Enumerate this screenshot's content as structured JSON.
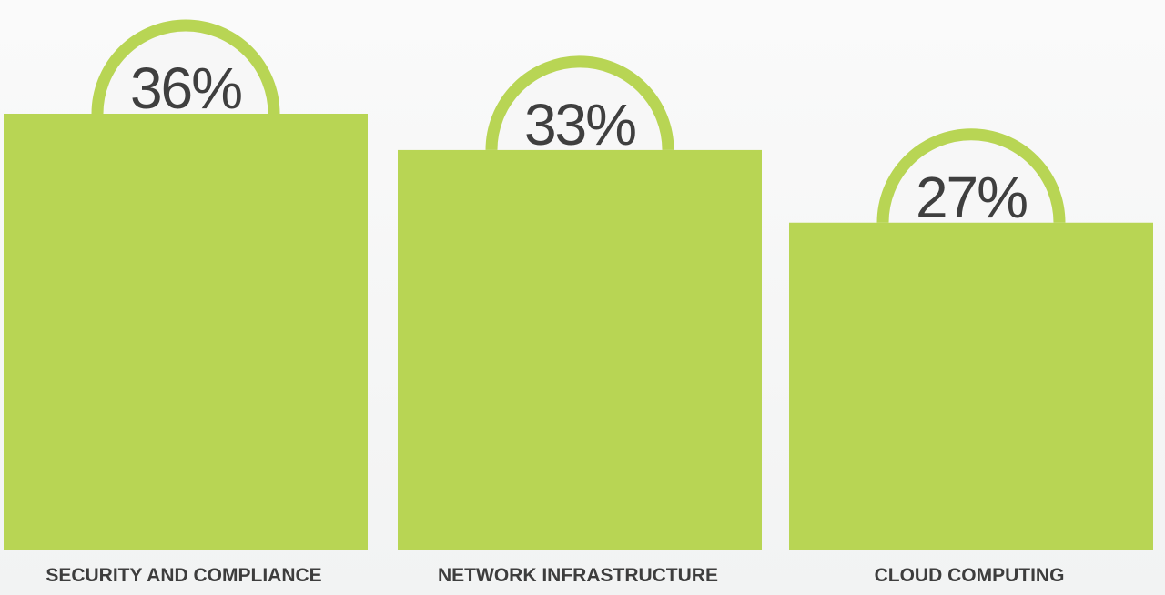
{
  "chart_data": {
    "type": "bar",
    "categories": [
      "SECURITY AND COMPLIANCE",
      "NETWORK INFRASTRUCTURE",
      "CLOUD COMPUTING"
    ],
    "values": [
      36,
      33,
      27
    ],
    "value_labels": [
      "36%",
      "33%",
      "27%"
    ],
    "title": "",
    "xlabel": "",
    "ylabel": "",
    "ylim": [
      0,
      36
    ],
    "grid": false,
    "legend": "none"
  },
  "colors": {
    "bar": "#b8d554",
    "arc_inner": "#f7f7f7",
    "value_text": "#3f3f3f",
    "category_text": "#3d3d3d"
  }
}
